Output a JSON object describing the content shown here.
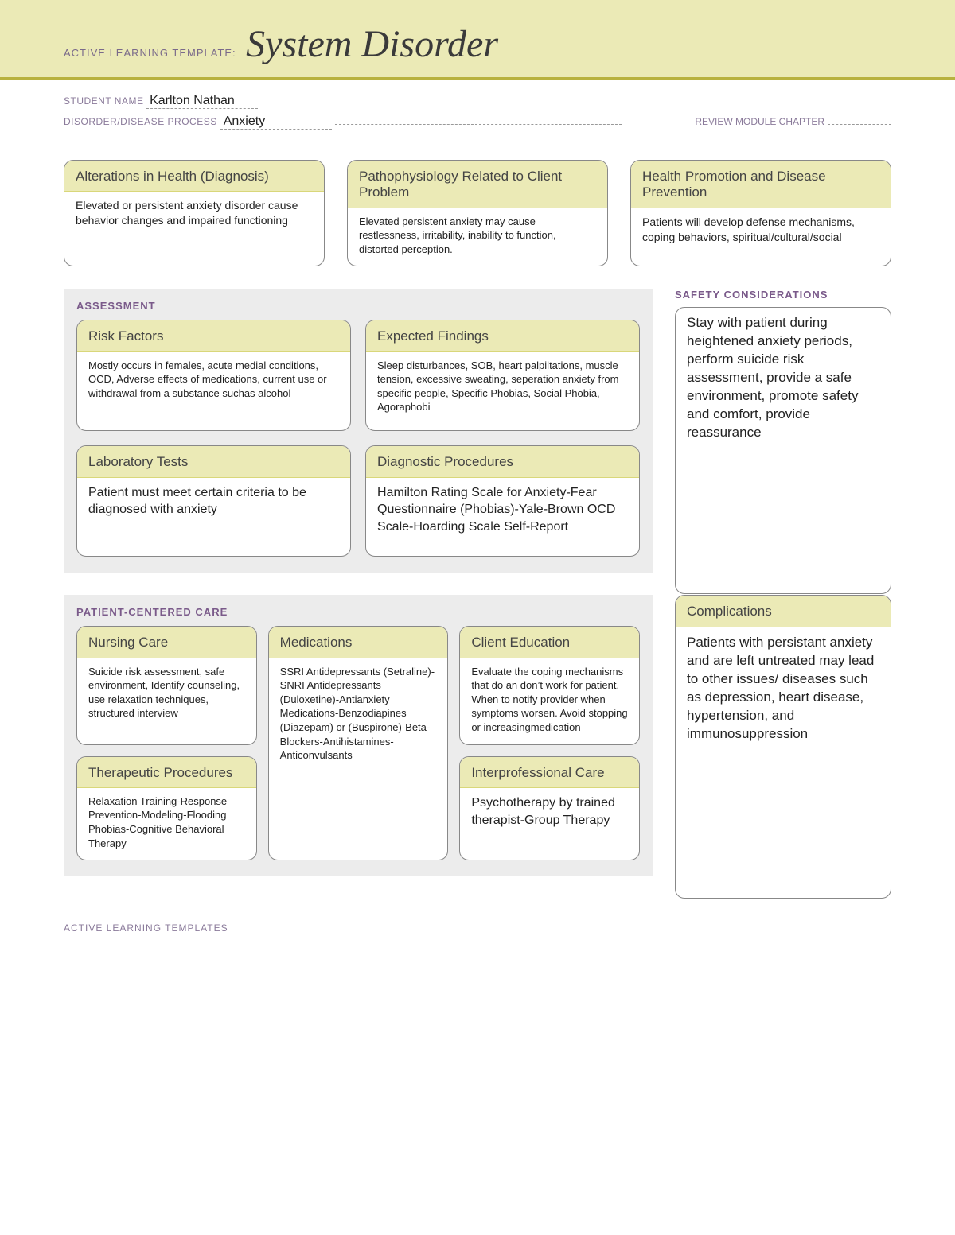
{
  "banner": {
    "prefix": "ACTIVE LEARNING TEMPLATE:",
    "title": "System Disorder"
  },
  "meta": {
    "student_label": "STUDENT NAME",
    "student_value": "Karlton Nathan",
    "disorder_label": "DISORDER/DISEASE PROCESS",
    "disorder_value": "Anxiety",
    "review_label": "REVIEW MODULE CHAPTER"
  },
  "top_cards": {
    "alterations": {
      "title": "Alterations in Health (Diagnosis)",
      "body": "Elevated or persistent anxiety disorder cause behavior changes and impaired functioning"
    },
    "patho": {
      "title": "Pathophysiology Related to Client Problem",
      "body": "Elevated persistent anxiety may cause restlessness, irritability, inability to function, distorted perception."
    },
    "health_promo": {
      "title": "Health Promotion and Disease Prevention",
      "body": "Patients will develop defense mechanisms, coping behaviors, spiritual/cultural/social"
    }
  },
  "assessment": {
    "section_title": "ASSESSMENT",
    "risk": {
      "title": "Risk Factors",
      "body": "Mostly occurs in females, acute medial conditions, OCD, Adverse effects of medications, current use or withdrawal from a substance suchas alcohol"
    },
    "expected": {
      "title": "Expected Findings",
      "body": "Sleep disturbances, SOB, heart palpiltations, muscle tension, excessive sweating, seperation anxiety from specific people, Specific Phobias, Social Phobia, Agoraphobi"
    },
    "lab": {
      "title": "Laboratory Tests",
      "body": "Patient must meet certain criteria to be diagnosed with anxiety"
    },
    "diag": {
      "title": "Diagnostic Procedures",
      "body": "Hamilton Rating Scale for Anxiety-Fear Questionnaire (Phobias)-Yale-Brown OCD Scale-Hoarding Scale Self-Report"
    }
  },
  "safety": {
    "section_title": "SAFETY CONSIDERATIONS",
    "body": "Stay with patient during heightened anxiety periods, perform suicide risk assessment, provide a safe environment, promote safety and comfort, provide reassurance"
  },
  "pcc": {
    "section_title": "PATIENT-CENTERED CARE",
    "nursing": {
      "title": "Nursing Care",
      "body": "Suicide risk assessment, safe environment, Identify counseling, use relaxation techniques, structured interview"
    },
    "meds": {
      "title": "Medications",
      "body": "SSRI Antidepressants (Setraline)-SNRI Antidepressants (Duloxetine)-Antianxiety Medications-Benzodiapines (Diazepam) or (Buspirone)-Beta-Blockers-Antihistamines-Anticonvulsants"
    },
    "client_ed": {
      "title": "Client Education",
      "body": "Evaluate the coping mechanisms that do an don’t work for patient.  When to notify provider when symptoms worsen. Avoid stopping or increasingmedication"
    },
    "therapeutic": {
      "title": "Therapeutic Procedures",
      "body": "Relaxation Training-Response Prevention-Modeling-Flooding Phobias-Cognitive Behavioral Therapy"
    },
    "interprof": {
      "title": "Interprofessional Care",
      "body": "Psychotherapy by trained therapist-Group Therapy"
    }
  },
  "complications": {
    "title": "Complications",
    "body": "Patients with persistant anxiety and are left untreated may lead to other issues/ diseases such as depression, heart disease, hypertension, and immunosuppression"
  },
  "footer": "ACTIVE LEARNING TEMPLATES"
}
